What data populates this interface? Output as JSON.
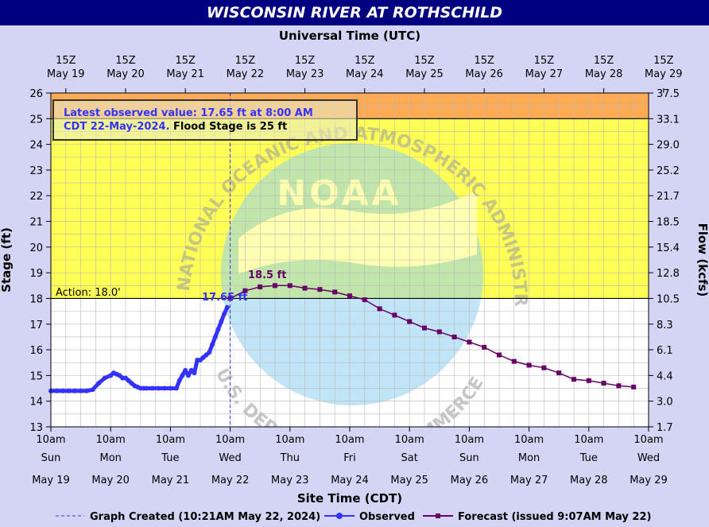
{
  "page_title": "WISCONSIN RIVER AT ROTHSCHILD",
  "chart_data": {
    "type": "line",
    "title": "WISCONSIN RIVER AT ROTHSCHILD",
    "top_axis_title": "Universal Time (UTC)",
    "xlabel": "Site Time (CDT)",
    "ylabel_left": "Stage (ft)",
    "ylabel_right": "Flow (kcfs)",
    "ylim": [
      13,
      26
    ],
    "xlim_days": [
      0,
      10
    ],
    "top_ticks": [
      {
        "l1": "15Z",
        "l2": "May 19"
      },
      {
        "l1": "15Z",
        "l2": "May 20"
      },
      {
        "l1": "15Z",
        "l2": "May 21"
      },
      {
        "l1": "15Z",
        "l2": "May 22"
      },
      {
        "l1": "15Z",
        "l2": "May 23"
      },
      {
        "l1": "15Z",
        "l2": "May 24"
      },
      {
        "l1": "15Z",
        "l2": "May 25"
      },
      {
        "l1": "15Z",
        "l2": "May 26"
      },
      {
        "l1": "15Z",
        "l2": "May 27"
      },
      {
        "l1": "15Z",
        "l2": "May 28"
      },
      {
        "l1": "15Z",
        "l2": "May 29"
      }
    ],
    "bottom_ticks": [
      {
        "l1": "10am",
        "l2": "Sun",
        "l3": "May 19"
      },
      {
        "l1": "10am",
        "l2": "Mon",
        "l3": "May 20"
      },
      {
        "l1": "10am",
        "l2": "Tue",
        "l3": "May 21"
      },
      {
        "l1": "10am",
        "l2": "Wed",
        "l3": "May 22"
      },
      {
        "l1": "10am",
        "l2": "Thu",
        "l3": "May 23"
      },
      {
        "l1": "10am",
        "l2": "Fri",
        "l3": "May 24"
      },
      {
        "l1": "10am",
        "l2": "Sat",
        "l3": "May 25"
      },
      {
        "l1": "10am",
        "l2": "Sun",
        "l3": "May 26"
      },
      {
        "l1": "10am",
        "l2": "Mon",
        "l3": "May 27"
      },
      {
        "l1": "10am",
        "l2": "Tue",
        "l3": "May 28"
      },
      {
        "l1": "10am",
        "l2": "Wed",
        "l3": "May 29"
      }
    ],
    "left_ticks": [
      13,
      14,
      15,
      16,
      17,
      18,
      19,
      20,
      21,
      22,
      23,
      24,
      25,
      26
    ],
    "right_ticks": [
      {
        "stage": 13.0,
        "label": "1.7"
      },
      {
        "stage": 14.0,
        "label": "3.0"
      },
      {
        "stage": 15.0,
        "label": "4.4"
      },
      {
        "stage": 16.0,
        "label": "6.1"
      },
      {
        "stage": 17.0,
        "label": "8.3"
      },
      {
        "stage": 18.0,
        "label": "10.5"
      },
      {
        "stage": 19.0,
        "label": "12.8"
      },
      {
        "stage": 20.0,
        "label": "15.4"
      },
      {
        "stage": 21.0,
        "label": "18.5"
      },
      {
        "stage": 22.0,
        "label": "21.7"
      },
      {
        "stage": 23.0,
        "label": "25.2"
      },
      {
        "stage": 24.0,
        "label": "29.0"
      },
      {
        "stage": 25.0,
        "label": "33.1"
      },
      {
        "stage": 26.0,
        "label": "37.5"
      }
    ],
    "bands": [
      {
        "from": 13,
        "to": 18,
        "color": "#ffffff"
      },
      {
        "from": 18,
        "to": 25,
        "color": "#ffff55"
      },
      {
        "from": 25,
        "to": 26,
        "color": "#ffaa55"
      }
    ],
    "action_label": "Action: 18.0'",
    "action_stage": 18.0,
    "flood_stage": 25.0,
    "created_day": 3.0,
    "info_line1": "Latest observed value: 17.65 ft at 8:00 AM",
    "info_line2_blue": "CDT 22-May-2024.",
    "info_line2_black": " Flood Stage is 25 ft",
    "observed_label": "17.65 ft",
    "peak_label": "18.5 ft",
    "watermark_text": "NOAA",
    "watermark_ring_top": "NATIONAL OCEANIC AND ATMOSPHERIC ADMINISTRATION",
    "watermark_ring_bottom": "U.S. DEPARTMENT OF COMMERCE",
    "series": [
      {
        "name": "Observed",
        "color": "#3333ff",
        "x_days": [
          0,
          0.1,
          0.2,
          0.3,
          0.4,
          0.5,
          0.6,
          0.7,
          0.8,
          0.9,
          1.0,
          1.05,
          1.1,
          1.15,
          1.2,
          1.25,
          1.3,
          1.35,
          1.4,
          1.45,
          1.5,
          1.55,
          1.6,
          1.7,
          1.8,
          1.9,
          2.0,
          2.1,
          2.15,
          2.2,
          2.25,
          2.3,
          2.35,
          2.4,
          2.45,
          2.5,
          2.55,
          2.6,
          2.65,
          2.7,
          2.75,
          2.8,
          2.85,
          2.9,
          2.95
        ],
        "y": [
          14.4,
          14.4,
          14.4,
          14.4,
          14.4,
          14.4,
          14.4,
          14.45,
          14.7,
          14.9,
          15.0,
          15.1,
          15.05,
          15.0,
          14.9,
          14.9,
          14.8,
          14.7,
          14.6,
          14.55,
          14.5,
          14.5,
          14.5,
          14.5,
          14.5,
          14.5,
          14.5,
          14.5,
          14.8,
          15.0,
          15.2,
          15.0,
          15.2,
          15.1,
          15.6,
          15.6,
          15.7,
          15.8,
          15.9,
          16.2,
          16.5,
          16.8,
          17.1,
          17.4,
          17.65
        ]
      },
      {
        "name": "Forecast",
        "color": "#660066",
        "x_days": [
          3.0,
          3.25,
          3.5,
          3.75,
          4.0,
          4.25,
          4.5,
          4.75,
          5.0,
          5.25,
          5.5,
          5.75,
          6.0,
          6.25,
          6.5,
          6.75,
          7.0,
          7.25,
          7.5,
          7.75,
          8.0,
          8.25,
          8.5,
          8.75,
          9.0,
          9.25,
          9.5,
          9.75
        ],
        "y": [
          18.0,
          18.3,
          18.45,
          18.5,
          18.5,
          18.4,
          18.35,
          18.25,
          18.1,
          17.95,
          17.6,
          17.35,
          17.1,
          16.85,
          16.7,
          16.5,
          16.3,
          16.1,
          15.8,
          15.55,
          15.4,
          15.3,
          15.1,
          14.85,
          14.8,
          14.7,
          14.6,
          14.55
        ]
      }
    ],
    "legend": {
      "created": "Graph Created (10:21AM May 22, 2024)",
      "observed": "Observed",
      "forecast": "Forecast (issued 9:07AM May 22)"
    }
  }
}
